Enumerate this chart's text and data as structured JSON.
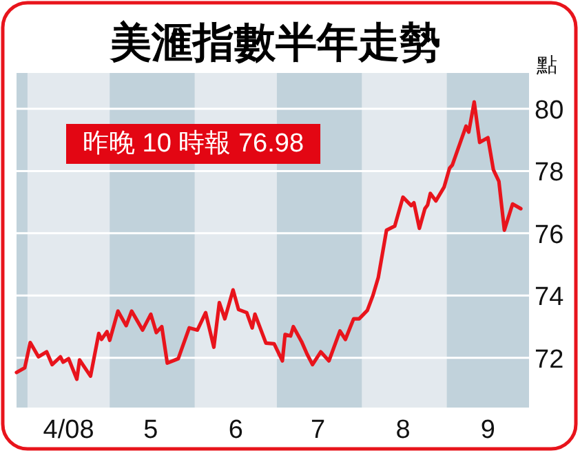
{
  "chart_data": {
    "type": "line",
    "title": "美滙指數半年走勢",
    "ylabel": "點",
    "annotations": [
      "昨晚 10 時報 76.98"
    ],
    "x": [
      "2008-03-28",
      "2008-03-31",
      "2008-04-02",
      "2008-04-05",
      "2008-04-08",
      "2008-04-10",
      "2008-04-13",
      "2008-04-14",
      "2008-04-16",
      "2008-04-19",
      "2008-04-20",
      "2008-04-24",
      "2008-04-27",
      "2008-04-28",
      "2008-04-30",
      "2008-05-01",
      "2008-05-04",
      "2008-05-07",
      "2008-05-09",
      "2008-05-13",
      "2008-05-16",
      "2008-05-18",
      "2008-05-20",
      "2008-05-22",
      "2008-05-26",
      "2008-05-30",
      "2008-06-02",
      "2008-06-05",
      "2008-06-08",
      "2008-06-10",
      "2008-06-12",
      "2008-06-15",
      "2008-06-17",
      "2008-06-20",
      "2008-06-22",
      "2008-06-23",
      "2008-06-27",
      "2008-06-30",
      "2008-07-03",
      "2008-07-04",
      "2008-07-06",
      "2008-07-07",
      "2008-07-10",
      "2008-07-12",
      "2008-07-14",
      "2008-07-17",
      "2008-07-20",
      "2008-07-24",
      "2008-07-26",
      "2008-07-29",
      "2008-07-31",
      "2008-08-03",
      "2008-08-05",
      "2008-08-07",
      "2008-08-10",
      "2008-08-13",
      "2008-08-16",
      "2008-08-19",
      "2008-08-20",
      "2008-08-22",
      "2008-08-24",
      "2008-08-25",
      "2008-08-26",
      "2008-08-28",
      "2008-08-31",
      "2008-09-02",
      "2008-09-03",
      "2008-09-08",
      "2008-09-09",
      "2008-09-11",
      "2008-09-13",
      "2008-09-16",
      "2008-09-18",
      "2008-09-20",
      "2008-09-22",
      "2008-09-25",
      "2008-09-28"
    ],
    "series": [
      {
        "color": "#e8141c",
        "values": [
          71.53,
          71.68,
          72.49,
          72.03,
          72.19,
          71.78,
          72.03,
          71.86,
          71.97,
          71.31,
          71.93,
          71.41,
          72.78,
          72.59,
          72.84,
          72.56,
          73.5,
          73.03,
          73.5,
          72.89,
          73.4,
          72.81,
          73.0,
          71.83,
          71.97,
          72.96,
          72.89,
          73.45,
          72.34,
          73.77,
          73.25,
          74.18,
          73.55,
          73.45,
          72.96,
          73.4,
          72.47,
          72.45,
          71.9,
          72.75,
          72.7,
          73.0,
          72.52,
          72.12,
          71.78,
          72.19,
          71.9,
          72.86,
          72.59,
          73.25,
          73.25,
          73.52,
          73.99,
          74.58,
          76.1,
          76.23,
          77.16,
          76.89,
          76.98,
          76.16,
          76.79,
          76.91,
          77.28,
          77.04,
          77.48,
          78.09,
          78.19,
          79.44,
          79.25,
          80.22,
          78.92,
          79.07,
          78.04,
          77.67,
          76.1,
          76.94,
          76.79
        ]
      }
    ],
    "xlim": [
      "2008-03-28",
      "2008-10-01"
    ],
    "ylim": [
      70.4,
      81.15
    ],
    "xticks": [
      {
        "value": "2008-04-16",
        "label": "4/08"
      },
      {
        "value": "2008-05-16",
        "label": "5"
      },
      {
        "value": "2008-06-16",
        "label": "6"
      },
      {
        "value": "2008-07-16",
        "label": "7"
      },
      {
        "value": "2008-08-16",
        "label": "8"
      },
      {
        "value": "2008-09-16",
        "label": "9"
      }
    ],
    "yticks": [
      72,
      74,
      76,
      78,
      80
    ],
    "grid": "y",
    "bands": [
      {
        "axis": "x",
        "from": "2008-03-28",
        "to": "2008-04-01",
        "color": "#c1d2db"
      },
      {
        "axis": "x",
        "from": "2008-05-01",
        "to": "2008-06-01",
        "color": "#c1d2db"
      },
      {
        "axis": "x",
        "from": "2008-07-01",
        "to": "2008-08-01",
        "color": "#c1d2db"
      },
      {
        "axis": "x",
        "from": "2008-09-01",
        "to": "2008-10-01",
        "color": "#c1d2db"
      }
    ]
  }
}
